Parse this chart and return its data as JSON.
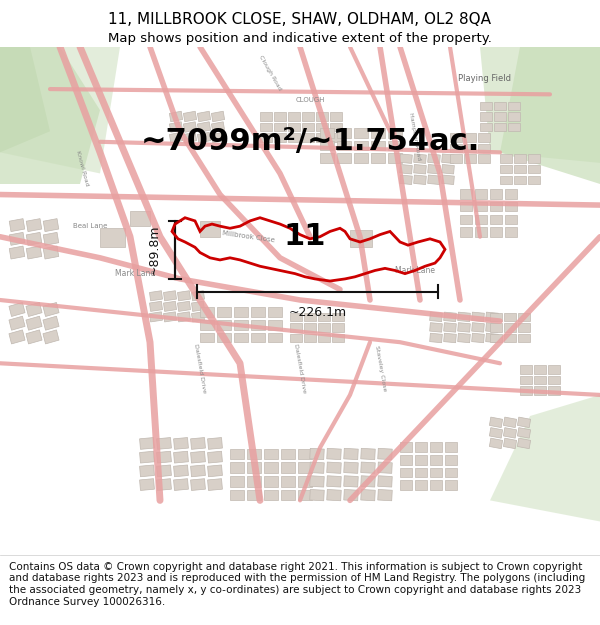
{
  "title_line1": "11, MILLBROOK CLOSE, SHAW, OLDHAM, OL2 8QA",
  "title_line2": "Map shows position and indicative extent of the property.",
  "area_text": "~7099m²/~1.754ac.",
  "dim_width": "~226.1m",
  "dim_height": "~89.8m",
  "property_label": "11",
  "footer_text": "Contains OS data © Crown copyright and database right 2021. This information is subject to Crown copyright and database rights 2023 and is reproduced with the permission of HM Land Registry. The polygons (including the associated geometry, namely x, y co-ordinates) are subject to Crown copyright and database rights 2023 Ordnance Survey 100026316.",
  "bg_color": "#f5f0eb",
  "map_bg": "#f0ece6",
  "road_color": "#e8a0a0",
  "building_color": "#d8d0c8",
  "building_edge": "#c0b8b0",
  "green_color": "#d0e8c8",
  "property_color": "#cc0000",
  "dim_color": "#111111",
  "title_fontsize": 11,
  "subtitle_fontsize": 9.5,
  "area_fontsize": 22,
  "label_fontsize": 22,
  "footer_fontsize": 7.5
}
